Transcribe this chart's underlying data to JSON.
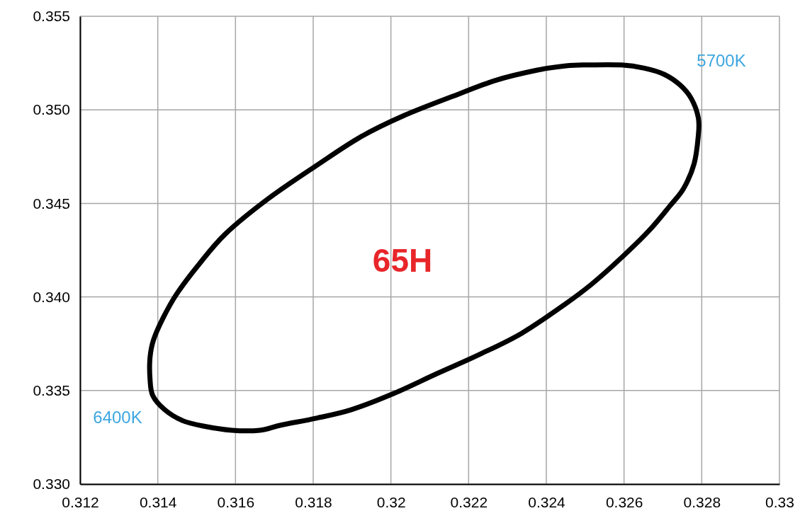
{
  "chart_data": {
    "type": "line",
    "xlim": [
      0.312,
      0.33
    ],
    "ylim": [
      0.33,
      0.355
    ],
    "xticks": [
      0.312,
      0.314,
      0.316,
      0.318,
      0.32,
      0.322,
      0.324,
      0.326,
      0.328,
      0.33
    ],
    "yticks": [
      {
        "value": 0.33,
        "label": "0.330"
      },
      {
        "value": 0.335,
        "label": "0.335"
      },
      {
        "value": 0.34,
        "label": "0.340"
      },
      {
        "value": 0.345,
        "label": "0.345"
      },
      {
        "value": 0.35,
        "label": "0.350"
      },
      {
        "value": 0.355,
        "label": "0.355"
      }
    ],
    "grid": true,
    "annotations": [
      "5700K",
      "6400K",
      "65H"
    ]
  }
}
